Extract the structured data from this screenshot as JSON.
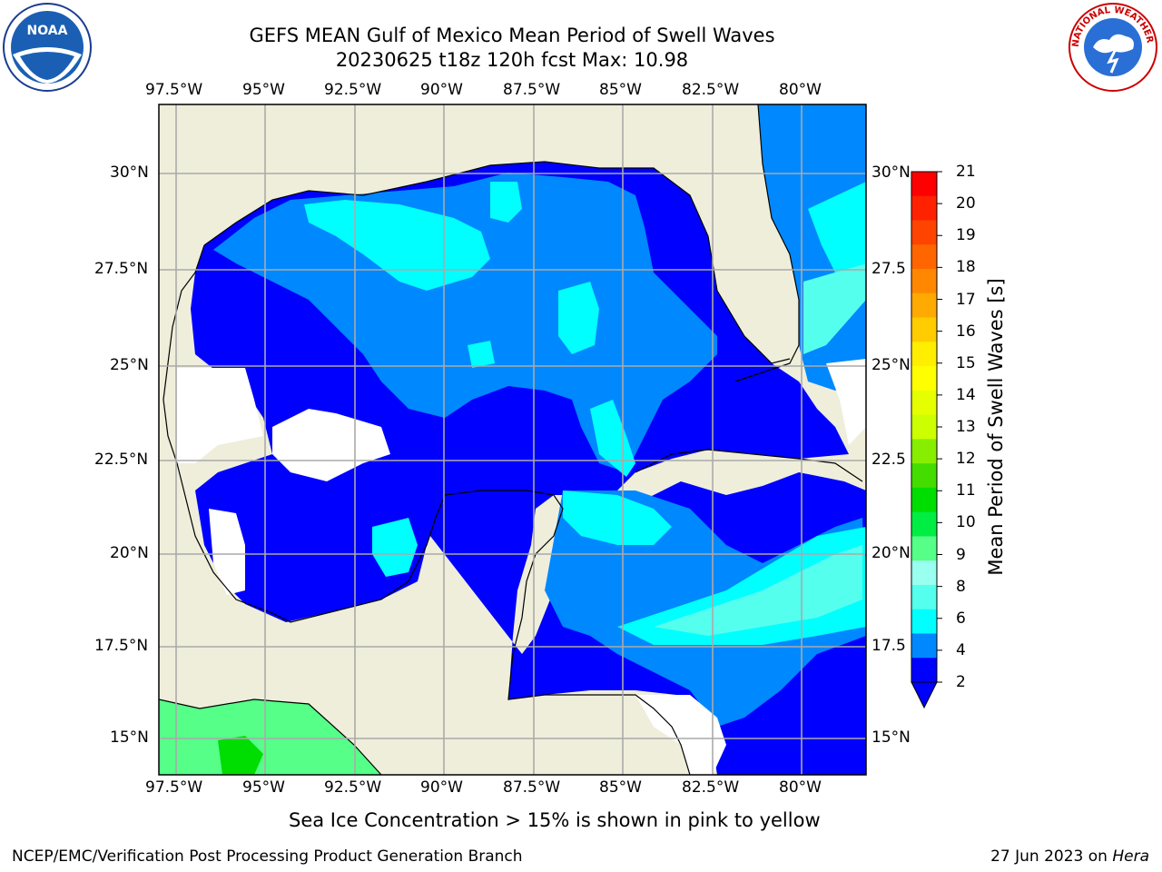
{
  "title": {
    "line1": "GEFS MEAN Gulf of Mexico Mean Period of Swell Waves",
    "line2": "20230625 t18z 120h fcst   Max: 10.98"
  },
  "logos": {
    "left": "noaa-logo",
    "right": "nws-logo",
    "nws_text": "NATIONAL WEATHER SERVICE",
    "noaa_text": "NOAA"
  },
  "axes": {
    "lon_labels": [
      "97.5°W",
      "95°W",
      "92.5°W",
      "90°W",
      "87.5°W",
      "85°W",
      "82.5°W",
      "80°W"
    ],
    "lat_labels_left": [
      "30°N",
      "27.5°N",
      "25°N",
      "22.5°N",
      "20°N",
      "17.5°N",
      "15°N"
    ],
    "lat_labels_right": [
      "30°N",
      "27.5",
      "25°N",
      "22.5",
      "20°N",
      "17.5",
      "15°N"
    ]
  },
  "colorbar": {
    "label": "Mean Period of Swell Waves [s]",
    "ticks": [
      "21",
      "20",
      "19",
      "18",
      "17",
      "16",
      "15",
      "14",
      "13",
      "12",
      "11",
      "10",
      "9",
      "8",
      "6",
      "4",
      "2"
    ],
    "colors": [
      "#ff0000",
      "#ff2200",
      "#ff4400",
      "#ff6600",
      "#ff8800",
      "#ffaa00",
      "#ffcc00",
      "#ffee00",
      "#ffff00",
      "#e6ff00",
      "#ccff00",
      "#88ee00",
      "#44dd00",
      "#00dd00",
      "#00ee44",
      "#55ff88",
      "#99ffee",
      "#55ffee",
      "#00ffff",
      "#0088ff",
      "#0000ff"
    ]
  },
  "colors": {
    "land": "#efeedb",
    "ocean_deep": "#0000ff",
    "ocean_mid": "#0088ff",
    "ocean_light": "#00ffff",
    "ocean_pale": "#55ffee",
    "grid": "#aaaaaa",
    "green": "#55ff88",
    "green_dark": "#00dd00"
  },
  "note": "Sea Ice Concentration > 15% is shown in pink to yellow",
  "footer": {
    "left": "NCEP/EMC/Verification Post Processing Product Generation Branch",
    "right_date": "27 Jun 2023 on",
    "right_host": "Hera"
  }
}
